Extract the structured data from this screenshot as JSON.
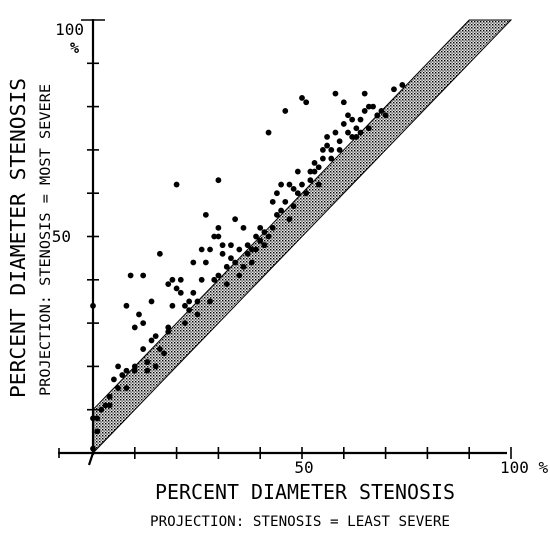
{
  "chart_data": {
    "type": "scatter",
    "x_axis": {
      "label": "PERCENT DIAMETER STENOSIS",
      "sublabel": "PROJECTION: STENOSIS = LEAST SEVERE",
      "range": [
        0,
        100
      ],
      "tick_labels": [
        "50",
        "100 %"
      ]
    },
    "y_axis": {
      "label": "PERCENT DIAMETER STENOSIS",
      "sublabel": "PROJECTION: STENOSIS = MOST SEVERE",
      "range": [
        0,
        100
      ],
      "tick_labels": [
        "50",
        "100",
        "%"
      ]
    },
    "tick_step": 10,
    "grid": false,
    "band": {
      "description": "shaded identity band",
      "offset_above": 10,
      "offset_below": 0
    },
    "series": [
      {
        "values": [
          [
            0,
            8
          ],
          [
            0,
            34
          ],
          [
            0,
            1
          ],
          [
            1,
            5
          ],
          [
            1,
            8
          ],
          [
            2,
            10
          ],
          [
            3,
            11
          ],
          [
            4,
            11
          ],
          [
            4,
            13
          ],
          [
            5,
            17
          ],
          [
            6,
            15
          ],
          [
            6,
            20
          ],
          [
            7,
            18
          ],
          [
            8,
            19
          ],
          [
            8,
            34
          ],
          [
            8,
            15
          ],
          [
            9,
            41
          ],
          [
            10,
            20
          ],
          [
            10,
            29
          ],
          [
            10,
            19
          ],
          [
            11,
            32
          ],
          [
            12,
            41
          ],
          [
            12,
            24
          ],
          [
            12,
            30
          ],
          [
            13,
            21
          ],
          [
            13,
            19
          ],
          [
            14,
            35
          ],
          [
            14,
            26
          ],
          [
            15,
            27
          ],
          [
            15,
            20
          ],
          [
            16,
            46
          ],
          [
            16,
            24
          ],
          [
            17,
            23
          ],
          [
            18,
            39
          ],
          [
            18,
            28
          ],
          [
            18,
            29
          ],
          [
            19,
            40
          ],
          [
            19,
            34
          ],
          [
            20,
            38
          ],
          [
            20,
            62
          ],
          [
            21,
            37
          ],
          [
            21,
            40
          ],
          [
            22,
            30
          ],
          [
            22,
            34
          ],
          [
            23,
            33
          ],
          [
            23,
            35
          ],
          [
            24,
            37
          ],
          [
            24,
            44
          ],
          [
            25,
            35
          ],
          [
            25,
            32
          ],
          [
            26,
            47
          ],
          [
            26,
            40
          ],
          [
            27,
            44
          ],
          [
            27,
            55
          ],
          [
            28,
            47
          ],
          [
            28,
            35
          ],
          [
            29,
            50
          ],
          [
            29,
            40
          ],
          [
            30,
            52
          ],
          [
            30,
            50
          ],
          [
            30,
            63
          ],
          [
            30,
            41
          ],
          [
            31,
            48
          ],
          [
            31,
            46
          ],
          [
            32,
            39
          ],
          [
            32,
            43
          ],
          [
            33,
            45
          ],
          [
            33,
            48
          ],
          [
            34,
            44
          ],
          [
            34,
            54
          ],
          [
            35,
            41
          ],
          [
            35,
            47
          ],
          [
            36,
            43
          ],
          [
            36,
            52
          ],
          [
            37,
            46
          ],
          [
            37,
            48
          ],
          [
            38,
            47
          ],
          [
            38,
            44
          ],
          [
            39,
            47
          ],
          [
            39,
            50
          ],
          [
            40,
            52
          ],
          [
            40,
            49
          ],
          [
            41,
            48
          ],
          [
            41,
            51
          ],
          [
            42,
            50
          ],
          [
            42,
            74
          ],
          [
            43,
            58
          ],
          [
            43,
            52
          ],
          [
            44,
            55
          ],
          [
            44,
            60
          ],
          [
            45,
            56
          ],
          [
            45,
            62
          ],
          [
            46,
            58
          ],
          [
            46,
            79
          ],
          [
            47,
            54
          ],
          [
            47,
            62
          ],
          [
            48,
            61
          ],
          [
            48,
            57
          ],
          [
            49,
            60
          ],
          [
            49,
            65
          ],
          [
            50,
            82
          ],
          [
            50,
            62
          ],
          [
            51,
            60
          ],
          [
            51,
            81
          ],
          [
            52,
            63
          ],
          [
            52,
            65
          ],
          [
            53,
            65
          ],
          [
            53,
            67
          ],
          [
            54,
            66
          ],
          [
            54,
            62
          ],
          [
            55,
            70
          ],
          [
            55,
            68
          ],
          [
            56,
            71
          ],
          [
            56,
            73
          ],
          [
            57,
            70
          ],
          [
            57,
            68
          ],
          [
            58,
            83
          ],
          [
            58,
            74
          ],
          [
            59,
            72
          ],
          [
            59,
            70
          ],
          [
            60,
            81
          ],
          [
            60,
            76
          ],
          [
            61,
            74
          ],
          [
            61,
            78
          ],
          [
            62,
            73
          ],
          [
            62,
            77
          ],
          [
            63,
            75
          ],
          [
            63,
            73
          ],
          [
            64,
            74
          ],
          [
            64,
            77
          ],
          [
            65,
            83
          ],
          [
            65,
            79
          ],
          [
            66,
            75
          ],
          [
            66,
            80
          ],
          [
            67,
            80
          ],
          [
            68,
            78
          ],
          [
            69,
            79
          ],
          [
            70,
            78
          ],
          [
            72,
            84
          ],
          [
            74,
            85
          ]
        ]
      }
    ]
  }
}
